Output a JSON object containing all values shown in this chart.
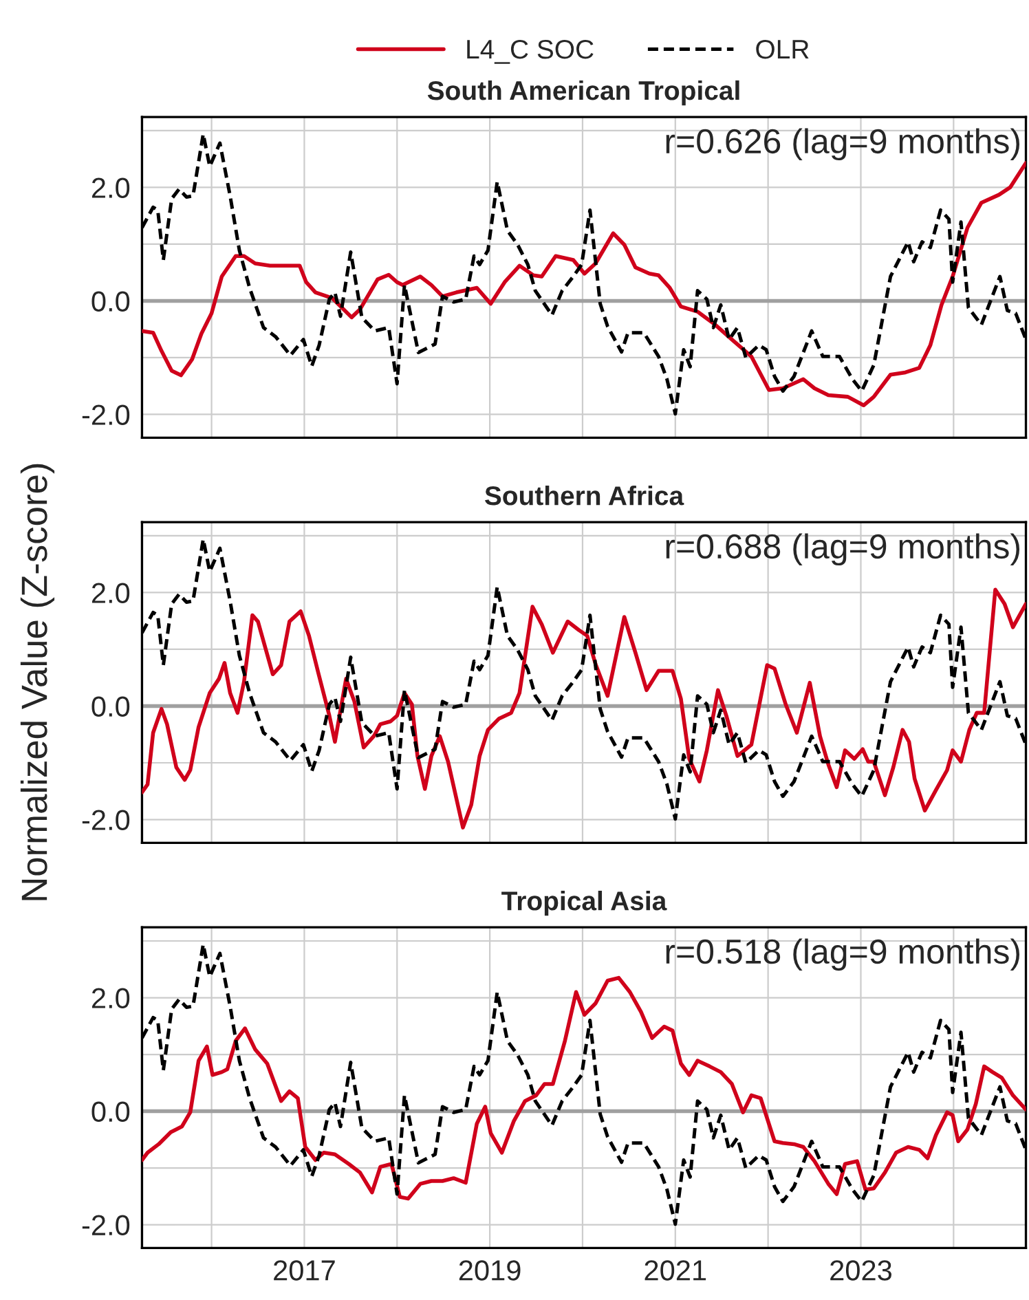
{
  "chart_data": [
    {
      "type": "line",
      "title": "South American Tropical",
      "legend": "top",
      "grid": true,
      "tick_labels": "y",
      "xlim": [
        2015.25,
        2024.78
      ],
      "ylim": [
        -2.41,
        3.24
      ],
      "xticks": [
        {
          "value": 2016,
          "label": null
        },
        {
          "value": 2017,
          "label": null
        },
        {
          "value": 2018,
          "label": null
        },
        {
          "value": 2019,
          "label": null
        },
        {
          "value": 2020,
          "label": null
        },
        {
          "value": 2021,
          "label": null
        },
        {
          "value": 2022,
          "label": null
        },
        {
          "value": 2023,
          "label": null
        },
        {
          "value": 2024,
          "label": null
        }
      ],
      "yticks": [
        {
          "value": -2,
          "label": "-2.0"
        },
        {
          "value": -1,
          "label": null
        },
        {
          "value": 0,
          "label": "0.0"
        },
        {
          "value": 1,
          "label": null
        },
        {
          "value": 2,
          "label": "2.0"
        },
        {
          "value": 3,
          "label": null
        }
      ],
      "ref_lines": [
        {
          "axis": "y",
          "value": 0,
          "label": null,
          "color": "#a0a0a0"
        }
      ],
      "annotations": [
        "r=0.626 (lag=9 months)"
      ],
      "series": [
        {
          "name": "L4_C SOC",
          "color": "#d0021b",
          "line_style": "solid",
          "x": [
            2015.25,
            2015.37,
            2015.46,
            2015.57,
            2015.67,
            2015.79,
            2015.89,
            2016.0,
            2016.11,
            2016.26,
            2016.35,
            2016.47,
            2016.63,
            2016.78,
            2016.95,
            2017.02,
            2017.12,
            2017.3,
            2017.51,
            2017.6,
            2017.79,
            2017.91,
            2018.0,
            2018.06,
            2018.25,
            2018.37,
            2018.49,
            2018.64,
            2018.86,
            2019.01,
            2019.16,
            2019.32,
            2019.47,
            2019.56,
            2019.71,
            2019.9,
            2020.02,
            2020.14,
            2020.33,
            2020.45,
            2020.57,
            2020.72,
            2020.82,
            2020.94,
            2021.06,
            2021.24,
            2021.43,
            2021.61,
            2021.82,
            2022.01,
            2022.16,
            2022.38,
            2022.5,
            2022.65,
            2022.86,
            2023.03,
            2023.14,
            2023.32,
            2023.48,
            2023.63,
            2023.75,
            2023.87,
            2023.99,
            2024.15,
            2024.3,
            2024.49,
            2024.61,
            2024.78
          ],
          "values": [
            -0.53,
            -0.56,
            -0.88,
            -1.23,
            -1.31,
            -1.03,
            -0.58,
            -0.22,
            0.43,
            0.79,
            0.79,
            0.66,
            0.62,
            0.62,
            0.62,
            0.33,
            0.15,
            0.05,
            -0.29,
            -0.15,
            0.38,
            0.46,
            0.33,
            0.28,
            0.43,
            0.28,
            0.08,
            0.15,
            0.23,
            -0.05,
            0.33,
            0.62,
            0.45,
            0.43,
            0.79,
            0.72,
            0.48,
            0.66,
            1.19,
            0.99,
            0.59,
            0.48,
            0.45,
            0.23,
            -0.1,
            -0.19,
            -0.42,
            -0.68,
            -0.98,
            -1.57,
            -1.54,
            -1.38,
            -1.54,
            -1.66,
            -1.69,
            -1.84,
            -1.69,
            -1.3,
            -1.26,
            -1.18,
            -0.78,
            -0.07,
            0.43,
            1.29,
            1.73,
            1.87,
            2.0,
            2.43
          ]
        },
        {
          "name": "OLR",
          "color": "#000000",
          "line_style": "dashed",
          "x": [
            2015.25,
            2015.37,
            2015.42,
            2015.48,
            2015.57,
            2015.65,
            2015.73,
            2015.8,
            2015.91,
            2015.98,
            2016.09,
            2016.2,
            2016.3,
            2016.41,
            2016.56,
            2016.69,
            2016.85,
            2016.99,
            2017.08,
            2017.16,
            2017.27,
            2017.33,
            2017.39,
            2017.5,
            2017.62,
            2017.76,
            2017.91,
            2018.0,
            2018.08,
            2018.23,
            2018.41,
            2018.49,
            2018.61,
            2018.74,
            2018.83,
            2018.89,
            2018.98,
            2019.08,
            2019.19,
            2019.3,
            2019.41,
            2019.49,
            2019.67,
            2019.78,
            2019.9,
            2019.99,
            2020.08,
            2020.19,
            2020.27,
            2020.42,
            2020.49,
            2020.66,
            2020.82,
            2020.91,
            2021.0,
            2021.09,
            2021.16,
            2021.24,
            2021.34,
            2021.41,
            2021.49,
            2021.58,
            2021.67,
            2021.76,
            2021.9,
            2021.98,
            2022.07,
            2022.16,
            2022.28,
            2022.47,
            2022.59,
            2022.77,
            2022.91,
            2023.01,
            2023.14,
            2023.32,
            2023.51,
            2023.57,
            2023.66,
            2023.75,
            2023.86,
            2023.95,
            2023.99,
            2024.08,
            2024.16,
            2024.3,
            2024.5,
            2024.58,
            2024.67,
            2024.78
          ],
          "values": [
            1.29,
            1.65,
            1.6,
            0.72,
            1.8,
            1.97,
            1.83,
            1.85,
            2.94,
            2.37,
            2.78,
            1.85,
            0.89,
            0.23,
            -0.47,
            -0.63,
            -0.96,
            -0.68,
            -1.15,
            -0.78,
            0.03,
            0.15,
            -0.27,
            0.86,
            -0.29,
            -0.53,
            -0.47,
            -1.46,
            0.28,
            -0.91,
            -0.76,
            0.08,
            -0.02,
            0.03,
            0.79,
            0.64,
            0.89,
            2.1,
            1.24,
            0.99,
            0.64,
            0.18,
            -0.25,
            0.18,
            0.43,
            0.64,
            1.6,
            -0.05,
            -0.45,
            -0.9,
            -0.56,
            -0.56,
            -0.98,
            -1.38,
            -1.99,
            -0.86,
            -1.16,
            0.18,
            0.03,
            -0.47,
            -0.07,
            -0.68,
            -0.47,
            -1.0,
            -0.78,
            -0.86,
            -1.33,
            -1.59,
            -1.33,
            -0.53,
            -0.98,
            -0.98,
            -1.38,
            -1.59,
            -1.13,
            0.43,
            1.04,
            0.69,
            1.04,
            0.94,
            1.6,
            1.44,
            0.33,
            1.39,
            -0.12,
            -0.42,
            0.43,
            -0.17,
            -0.22,
            -0.68
          ]
        }
      ]
    },
    {
      "type": "line",
      "title": "Southern Africa",
      "ylabel": "Normalized Value (Z-score)",
      "grid": true,
      "tick_labels": "y",
      "xlim": [
        2015.25,
        2024.78
      ],
      "ylim": [
        -2.41,
        3.24
      ],
      "xticks": [
        {
          "value": 2016,
          "label": null
        },
        {
          "value": 2017,
          "label": null
        },
        {
          "value": 2018,
          "label": null
        },
        {
          "value": 2019,
          "label": null
        },
        {
          "value": 2020,
          "label": null
        },
        {
          "value": 2021,
          "label": null
        },
        {
          "value": 2022,
          "label": null
        },
        {
          "value": 2023,
          "label": null
        },
        {
          "value": 2024,
          "label": null
        }
      ],
      "yticks": [
        {
          "value": -2,
          "label": "-2.0"
        },
        {
          "value": -1,
          "label": null
        },
        {
          "value": 0,
          "label": "0.0"
        },
        {
          "value": 1,
          "label": null
        },
        {
          "value": 2,
          "label": "2.0"
        },
        {
          "value": 3,
          "label": null
        }
      ],
      "ref_lines": [
        {
          "axis": "y",
          "value": 0,
          "label": null,
          "color": "#a0a0a0"
        }
      ],
      "annotations": [
        "r=0.688 (lag=9 months)"
      ],
      "series": [
        {
          "color": "#d0021b",
          "line_style": "solid",
          "x": [
            2015.25,
            2015.31,
            2015.37,
            2015.46,
            2015.52,
            2015.62,
            2015.71,
            2015.77,
            2015.86,
            2015.98,
            2016.08,
            2016.14,
            2016.2,
            2016.28,
            2016.35,
            2016.44,
            2016.5,
            2016.66,
            2016.75,
            2016.84,
            2016.96,
            2017.05,
            2017.15,
            2017.27,
            2017.33,
            2017.45,
            2017.54,
            2017.64,
            2017.75,
            2017.82,
            2017.93,
            2018.0,
            2018.08,
            2018.16,
            2018.22,
            2018.3,
            2018.37,
            2018.46,
            2018.55,
            2018.71,
            2018.8,
            2018.89,
            2018.98,
            2019.1,
            2019.23,
            2019.32,
            2019.46,
            2019.56,
            2019.68,
            2019.84,
            2019.96,
            2020.05,
            2020.14,
            2020.27,
            2020.45,
            2020.57,
            2020.69,
            2020.82,
            2020.97,
            2021.06,
            2021.15,
            2021.26,
            2021.34,
            2021.46,
            2021.55,
            2021.67,
            2021.82,
            2021.99,
            2022.07,
            2022.19,
            2022.31,
            2022.45,
            2022.56,
            2022.65,
            2022.74,
            2022.83,
            2022.93,
            2023.02,
            2023.08,
            2023.14,
            2023.26,
            2023.35,
            2023.45,
            2023.52,
            2023.58,
            2023.69,
            2023.81,
            2023.93,
            2023.99,
            2024.08,
            2024.17,
            2024.25,
            2024.33,
            2024.45,
            2024.55,
            2024.64,
            2024.78
          ],
          "values": [
            -1.52,
            -1.38,
            -0.47,
            -0.05,
            -0.32,
            -1.08,
            -1.3,
            -1.13,
            -0.37,
            0.23,
            0.48,
            0.76,
            0.23,
            -0.12,
            0.43,
            1.6,
            1.49,
            0.56,
            0.72,
            1.49,
            1.67,
            1.24,
            0.59,
            -0.17,
            -0.63,
            0.48,
            0.08,
            -0.73,
            -0.53,
            -0.32,
            -0.27,
            -0.17,
            0.23,
            0.03,
            -0.88,
            -1.46,
            -0.88,
            -0.53,
            -0.98,
            -2.14,
            -1.74,
            -0.88,
            -0.42,
            -0.22,
            -0.12,
            0.23,
            1.75,
            1.44,
            0.94,
            1.49,
            1.34,
            1.24,
            0.74,
            0.18,
            1.57,
            0.94,
            0.28,
            0.62,
            0.62,
            0.13,
            -0.93,
            -1.33,
            -0.78,
            0.28,
            -0.17,
            -0.88,
            -0.68,
            0.72,
            0.66,
            0.03,
            -0.47,
            0.41,
            -0.53,
            -1.03,
            -1.43,
            -0.78,
            -0.93,
            -0.76,
            -0.98,
            -0.98,
            -1.57,
            -1.08,
            -0.42,
            -0.63,
            -1.28,
            -1.84,
            -1.48,
            -1.13,
            -0.78,
            -0.98,
            -0.42,
            -0.12,
            -0.12,
            2.05,
            1.8,
            1.39,
            1.8
          ]
        },
        {
          "color": "#000000",
          "line_style": "dashed",
          "x": [
            2015.25,
            2015.37,
            2015.42,
            2015.48,
            2015.57,
            2015.65,
            2015.73,
            2015.8,
            2015.91,
            2015.98,
            2016.09,
            2016.2,
            2016.3,
            2016.41,
            2016.56,
            2016.69,
            2016.85,
            2016.99,
            2017.08,
            2017.16,
            2017.27,
            2017.33,
            2017.39,
            2017.5,
            2017.62,
            2017.76,
            2017.91,
            2018.0,
            2018.08,
            2018.23,
            2018.41,
            2018.49,
            2018.61,
            2018.74,
            2018.83,
            2018.89,
            2018.98,
            2019.08,
            2019.19,
            2019.3,
            2019.41,
            2019.49,
            2019.67,
            2019.78,
            2019.9,
            2019.99,
            2020.08,
            2020.19,
            2020.27,
            2020.42,
            2020.49,
            2020.66,
            2020.82,
            2020.91,
            2021.0,
            2021.09,
            2021.16,
            2021.24,
            2021.34,
            2021.41,
            2021.49,
            2021.58,
            2021.67,
            2021.76,
            2021.9,
            2021.98,
            2022.07,
            2022.16,
            2022.28,
            2022.47,
            2022.59,
            2022.77,
            2022.91,
            2023.01,
            2023.14,
            2023.32,
            2023.51,
            2023.57,
            2023.66,
            2023.75,
            2023.86,
            2023.95,
            2023.99,
            2024.08,
            2024.16,
            2024.3,
            2024.5,
            2024.58,
            2024.67,
            2024.78
          ],
          "values": [
            1.29,
            1.65,
            1.6,
            0.72,
            1.8,
            1.97,
            1.83,
            1.85,
            2.94,
            2.37,
            2.78,
            1.85,
            0.89,
            0.23,
            -0.47,
            -0.63,
            -0.96,
            -0.68,
            -1.15,
            -0.78,
            0.03,
            0.15,
            -0.27,
            0.86,
            -0.29,
            -0.53,
            -0.47,
            -1.46,
            0.28,
            -0.91,
            -0.76,
            0.08,
            -0.02,
            0.03,
            0.79,
            0.64,
            0.89,
            2.1,
            1.24,
            0.99,
            0.64,
            0.18,
            -0.25,
            0.18,
            0.43,
            0.64,
            1.6,
            -0.05,
            -0.45,
            -0.9,
            -0.56,
            -0.56,
            -0.98,
            -1.38,
            -1.99,
            -0.86,
            -1.16,
            0.18,
            0.03,
            -0.47,
            -0.07,
            -0.68,
            -0.47,
            -1.0,
            -0.78,
            -0.86,
            -1.33,
            -1.59,
            -1.33,
            -0.53,
            -0.98,
            -0.98,
            -1.38,
            -1.59,
            -1.13,
            0.43,
            1.04,
            0.69,
            1.04,
            0.94,
            1.6,
            1.44,
            0.33,
            1.39,
            -0.12,
            -0.42,
            0.43,
            -0.17,
            -0.22,
            -0.68
          ]
        }
      ]
    },
    {
      "type": "line",
      "title": "Tropical Asia",
      "grid": true,
      "xlim": [
        2015.25,
        2024.78
      ],
      "ylim": [
        -2.41,
        3.24
      ],
      "xticks": [
        {
          "value": 2016,
          "label": null
        },
        {
          "value": 2017,
          "label": "2017"
        },
        {
          "value": 2018,
          "label": null
        },
        {
          "value": 2019,
          "label": "2019"
        },
        {
          "value": 2020,
          "label": null
        },
        {
          "value": 2021,
          "label": "2021"
        },
        {
          "value": 2022,
          "label": null
        },
        {
          "value": 2023,
          "label": "2023"
        },
        {
          "value": 2024,
          "label": null
        }
      ],
      "yticks": [
        {
          "value": -2,
          "label": "-2.0"
        },
        {
          "value": -1,
          "label": null
        },
        {
          "value": 0,
          "label": "0.0"
        },
        {
          "value": 1,
          "label": null
        },
        {
          "value": 2,
          "label": "2.0"
        },
        {
          "value": 3,
          "label": null
        }
      ],
      "ref_lines": [
        {
          "axis": "y",
          "value": 0,
          "label": null,
          "color": "#a0a0a0"
        }
      ],
      "annotations": [
        "r=0.518 (lag=9 months)"
      ],
      "series": [
        {
          "color": "#d0021b",
          "line_style": "solid",
          "x": [
            2015.25,
            2015.31,
            2015.43,
            2015.56,
            2015.68,
            2015.77,
            2015.86,
            2015.95,
            2016.01,
            2016.11,
            2016.17,
            2016.26,
            2016.36,
            2016.47,
            2016.6,
            2016.75,
            2016.84,
            2016.93,
            2017.01,
            2017.12,
            2017.21,
            2017.33,
            2017.48,
            2017.6,
            2017.73,
            2017.82,
            2017.94,
            2018.03,
            2018.12,
            2018.25,
            2018.37,
            2018.49,
            2018.61,
            2018.74,
            2018.86,
            2018.95,
            2019.01,
            2019.13,
            2019.26,
            2019.38,
            2019.5,
            2019.59,
            2019.68,
            2019.81,
            2019.93,
            2020.02,
            2020.14,
            2020.27,
            2020.39,
            2020.51,
            2020.63,
            2020.75,
            2020.88,
            2020.97,
            2021.06,
            2021.15,
            2021.24,
            2021.37,
            2021.49,
            2021.61,
            2021.73,
            2021.82,
            2021.92,
            2022.07,
            2022.16,
            2022.28,
            2022.38,
            2022.5,
            2022.65,
            2022.74,
            2022.83,
            2022.96,
            2023.05,
            2023.14,
            2023.26,
            2023.38,
            2023.51,
            2023.63,
            2023.72,
            2023.81,
            2023.93,
            2023.99,
            2024.05,
            2024.15,
            2024.24,
            2024.33,
            2024.42,
            2024.52,
            2024.64,
            2024.78
          ],
          "values": [
            -0.86,
            -0.73,
            -0.58,
            -0.37,
            -0.27,
            -0.02,
            0.89,
            1.14,
            0.64,
            0.69,
            0.74,
            1.24,
            1.46,
            1.09,
            0.84,
            0.18,
            0.35,
            0.23,
            -0.63,
            -0.86,
            -0.73,
            -0.76,
            -0.93,
            -1.08,
            -1.43,
            -0.98,
            -0.93,
            -1.51,
            -1.54,
            -1.28,
            -1.23,
            -1.23,
            -1.18,
            -1.26,
            -0.22,
            0.08,
            -0.39,
            -0.73,
            -0.17,
            0.18,
            0.28,
            0.48,
            0.48,
            1.24,
            2.1,
            1.7,
            1.9,
            2.3,
            2.35,
            2.1,
            1.75,
            1.29,
            1.49,
            1.42,
            0.84,
            0.64,
            0.89,
            0.79,
            0.69,
            0.48,
            -0.02,
            0.28,
            0.23,
            -0.53,
            -0.56,
            -0.58,
            -0.63,
            -0.88,
            -1.28,
            -1.46,
            -0.93,
            -0.88,
            -1.38,
            -1.36,
            -1.08,
            -0.73,
            -0.63,
            -0.68,
            -0.83,
            -0.42,
            -0.02,
            -0.07,
            -0.53,
            -0.32,
            0.13,
            0.79,
            0.69,
            0.59,
            0.28,
            0.03
          ]
        },
        {
          "color": "#000000",
          "line_style": "dashed",
          "x": [
            2015.25,
            2015.37,
            2015.42,
            2015.48,
            2015.57,
            2015.65,
            2015.73,
            2015.8,
            2015.91,
            2015.98,
            2016.09,
            2016.2,
            2016.3,
            2016.41,
            2016.56,
            2016.69,
            2016.85,
            2016.99,
            2017.08,
            2017.16,
            2017.27,
            2017.33,
            2017.39,
            2017.5,
            2017.62,
            2017.76,
            2017.91,
            2018.0,
            2018.08,
            2018.23,
            2018.41,
            2018.49,
            2018.61,
            2018.74,
            2018.83,
            2018.89,
            2018.98,
            2019.08,
            2019.19,
            2019.3,
            2019.41,
            2019.49,
            2019.67,
            2019.78,
            2019.9,
            2019.99,
            2020.08,
            2020.19,
            2020.27,
            2020.42,
            2020.49,
            2020.66,
            2020.82,
            2020.91,
            2021.0,
            2021.09,
            2021.16,
            2021.24,
            2021.34,
            2021.41,
            2021.49,
            2021.58,
            2021.67,
            2021.76,
            2021.9,
            2021.98,
            2022.07,
            2022.16,
            2022.28,
            2022.47,
            2022.59,
            2022.77,
            2022.91,
            2023.01,
            2023.14,
            2023.32,
            2023.51,
            2023.57,
            2023.66,
            2023.75,
            2023.86,
            2023.95,
            2023.99,
            2024.08,
            2024.16,
            2024.3,
            2024.5,
            2024.58,
            2024.67,
            2024.78
          ],
          "values": [
            1.29,
            1.65,
            1.6,
            0.72,
            1.8,
            1.97,
            1.83,
            1.85,
            2.94,
            2.37,
            2.78,
            1.85,
            0.89,
            0.23,
            -0.47,
            -0.63,
            -0.96,
            -0.68,
            -1.15,
            -0.78,
            0.03,
            0.15,
            -0.27,
            0.86,
            -0.29,
            -0.53,
            -0.47,
            -1.46,
            0.28,
            -0.91,
            -0.76,
            0.08,
            -0.02,
            0.03,
            0.79,
            0.64,
            0.89,
            2.1,
            1.24,
            0.99,
            0.64,
            0.18,
            -0.25,
            0.18,
            0.43,
            0.64,
            1.6,
            -0.05,
            -0.45,
            -0.9,
            -0.56,
            -0.56,
            -0.98,
            -1.38,
            -1.99,
            -0.86,
            -1.16,
            0.18,
            0.03,
            -0.47,
            -0.07,
            -0.68,
            -0.47,
            -1.0,
            -0.78,
            -0.86,
            -1.33,
            -1.59,
            -1.33,
            -0.53,
            -0.98,
            -0.98,
            -1.38,
            -1.59,
            -1.13,
            0.43,
            1.04,
            0.69,
            1.04,
            0.94,
            1.6,
            1.44,
            0.33,
            1.39,
            -0.12,
            -0.42,
            0.43,
            -0.17,
            -0.22,
            -0.68
          ]
        }
      ]
    }
  ]
}
